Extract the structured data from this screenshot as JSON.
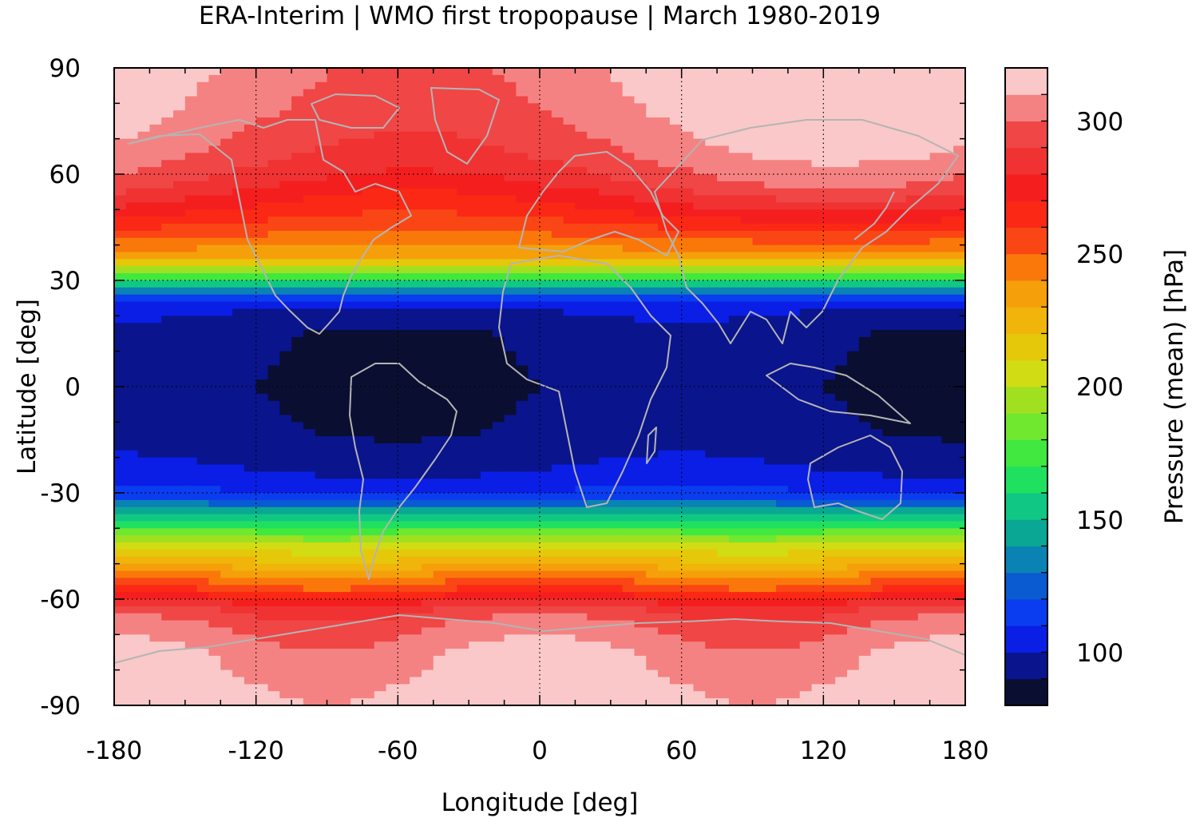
{
  "title": "ERA-Interim | WMO first tropopause | March 1980-2019",
  "map": {
    "xlabel": "Longitude [deg]",
    "ylabel": "Latitude [deg]",
    "xlim": [
      -180,
      180
    ],
    "ylim": [
      -90,
      90
    ],
    "xticks": [
      "-180",
      "-120",
      "-60",
      "0",
      "60",
      "120",
      "180"
    ],
    "yticks": [
      "90",
      "60",
      "30",
      "0",
      "-30",
      "-60",
      "-90"
    ],
    "xtick_values": [
      -180,
      -120,
      -60,
      0,
      60,
      120,
      180
    ],
    "ytick_values": [
      90,
      60,
      30,
      0,
      -30,
      -60,
      -90
    ],
    "grid": "dotted",
    "coastline_color": "#b4b4b4"
  },
  "colorbar": {
    "label": "Pressure (mean) [hPa]",
    "ticks": [
      "100",
      "150",
      "200",
      "250",
      "300"
    ],
    "tick_values": [
      100,
      150,
      200,
      250,
      300
    ],
    "range": [
      80,
      320
    ],
    "step": 10,
    "colors": [
      "#0a0f32",
      "#0a148c",
      "#0a1ee6",
      "#0a3cf0",
      "#0a5ad2",
      "#0a82b4",
      "#0aa894",
      "#10c884",
      "#20e060",
      "#40e840",
      "#70e830",
      "#a0e020",
      "#d2dc14",
      "#e6c80a",
      "#f0b40a",
      "#f5a00a",
      "#fa780a",
      "#fa4614",
      "#fa2814",
      "#f51e1e",
      "#f03232",
      "#f04646",
      "#f58282",
      "#fac8c8"
    ]
  }
}
